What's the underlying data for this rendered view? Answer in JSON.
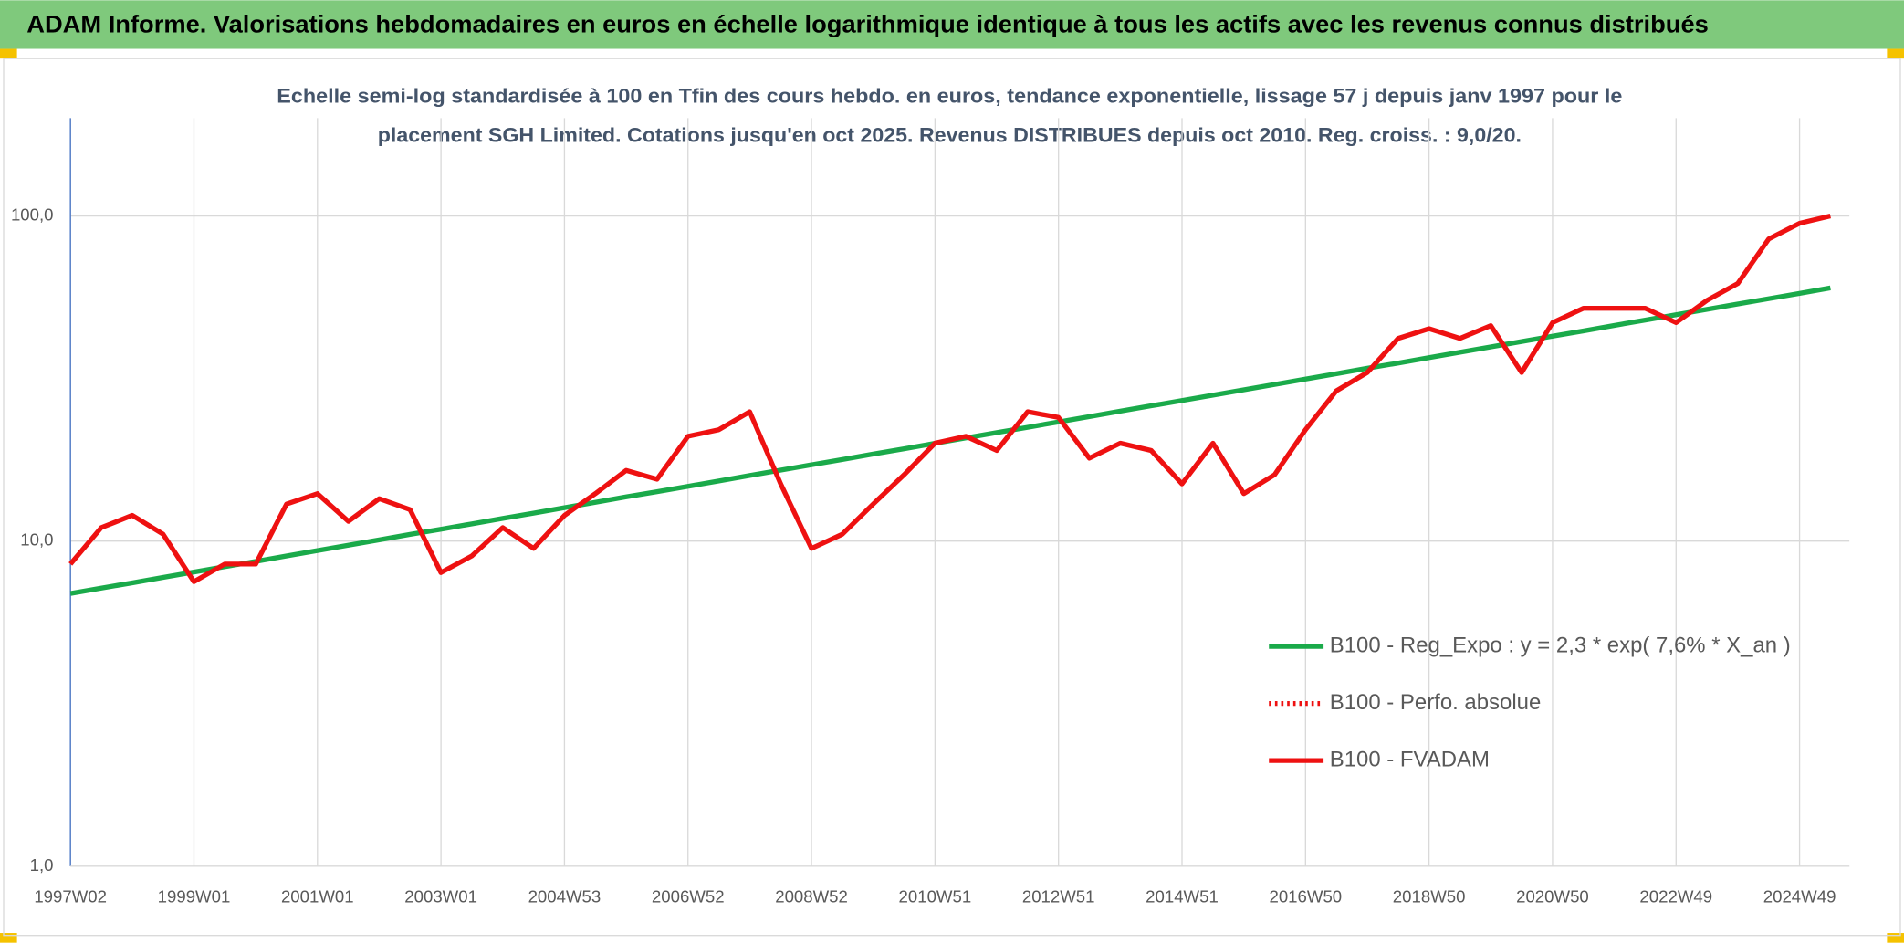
{
  "header": {
    "title": "ADAM Informe. Valorisations hebdomadaires en euros en échelle logarithmique identique à tous les actifs avec les revenus connus distribués"
  },
  "chart_data": {
    "type": "line",
    "subtitle": [
      "Echelle semi-log standardisée à 100 en Tfin des cours hebdo. en euros, tendance exponentielle, lissage 57 j depuis janv 1997 pour le",
      "placement SGH Limited. Cotations jusqu'en oct 2025. Revenus DISTRIBUES depuis oct 2010. Reg. croiss. : 9,0/20."
    ],
    "log_scale": true,
    "grid": true,
    "legend": "right",
    "ylim": [
      1,
      200
    ],
    "yticks": [
      {
        "value": 1,
        "label": "1,0"
      },
      {
        "value": 10,
        "label": "10,0"
      },
      {
        "value": 100,
        "label": "100,0"
      }
    ],
    "categories": [
      "1997W02",
      null,
      null,
      null,
      "1999W01",
      null,
      null,
      null,
      "2001W01",
      null,
      null,
      null,
      "2003W01",
      null,
      null,
      null,
      "2004W53",
      null,
      null,
      null,
      "2006W52",
      null,
      null,
      null,
      "2008W52",
      null,
      null,
      null,
      "2010W51",
      null,
      null,
      null,
      "2012W51",
      null,
      null,
      null,
      "2014W51",
      null,
      null,
      null,
      "2016W50",
      null,
      null,
      null,
      "2018W50",
      null,
      null,
      null,
      "2020W50",
      null,
      null,
      null,
      "2022W49",
      null,
      null,
      null,
      "2024W49",
      null
    ],
    "series": [
      {
        "name": "B100 - Reg_Expo : y = 2,3 * exp( 7,6% *  X_an )",
        "color": "#1aaa4a",
        "dash": "solid",
        "values": [
          6.9,
          7.17,
          7.44,
          7.73,
          8.03,
          8.34,
          8.66,
          9.0,
          9.35,
          9.71,
          10.09,
          10.48,
          10.88,
          11.3,
          11.74,
          12.19,
          12.67,
          13.16,
          13.67,
          14.19,
          14.74,
          15.31,
          15.91,
          16.52,
          17.16,
          17.83,
          18.52,
          19.23,
          19.98,
          20.75,
          21.55,
          22.38,
          23.25,
          24.15,
          25.09,
          26.06,
          27.06,
          28.11,
          29.2,
          30.33,
          31.5,
          32.72,
          33.99,
          35.3,
          36.67,
          38.09,
          39.56,
          41.09,
          42.68,
          44.33,
          46.05,
          47.83,
          49.68,
          51.61,
          53.6,
          55.68,
          57.83,
          60.07
        ]
      },
      {
        "name": "B100 - Perfo. absolue",
        "color": "#ee1111",
        "dash": "dotted",
        "values": [
          null,
          null,
          null,
          null,
          null,
          null,
          null,
          null,
          null,
          null,
          null,
          null,
          null,
          null,
          null,
          null,
          null,
          null,
          null,
          null,
          null,
          null,
          null,
          null,
          null,
          null,
          null,
          null,
          null,
          null,
          null,
          null,
          null,
          null,
          null,
          null,
          null,
          null,
          null,
          null,
          null,
          null,
          null,
          null,
          null,
          null,
          null,
          null,
          null,
          null,
          null,
          null,
          null,
          null,
          null,
          null,
          null,
          null
        ]
      },
      {
        "name": "B100 - FVADAM",
        "color": "#ee1111",
        "dash": "solid",
        "values": [
          8.5,
          11,
          12,
          10.5,
          7.5,
          8.5,
          8.5,
          13,
          14,
          11.5,
          13.5,
          12.5,
          8,
          9,
          11,
          9.5,
          12,
          14,
          16.5,
          15.5,
          21,
          22,
          25,
          15,
          9.5,
          10.5,
          13,
          16,
          20,
          21,
          19,
          25,
          24,
          18,
          20,
          19,
          15,
          20,
          14,
          16,
          22,
          29,
          33,
          42,
          45,
          42,
          46,
          33,
          47,
          52,
          52,
          52,
          47,
          55,
          62,
          85,
          95,
          100
        ]
      }
    ]
  }
}
